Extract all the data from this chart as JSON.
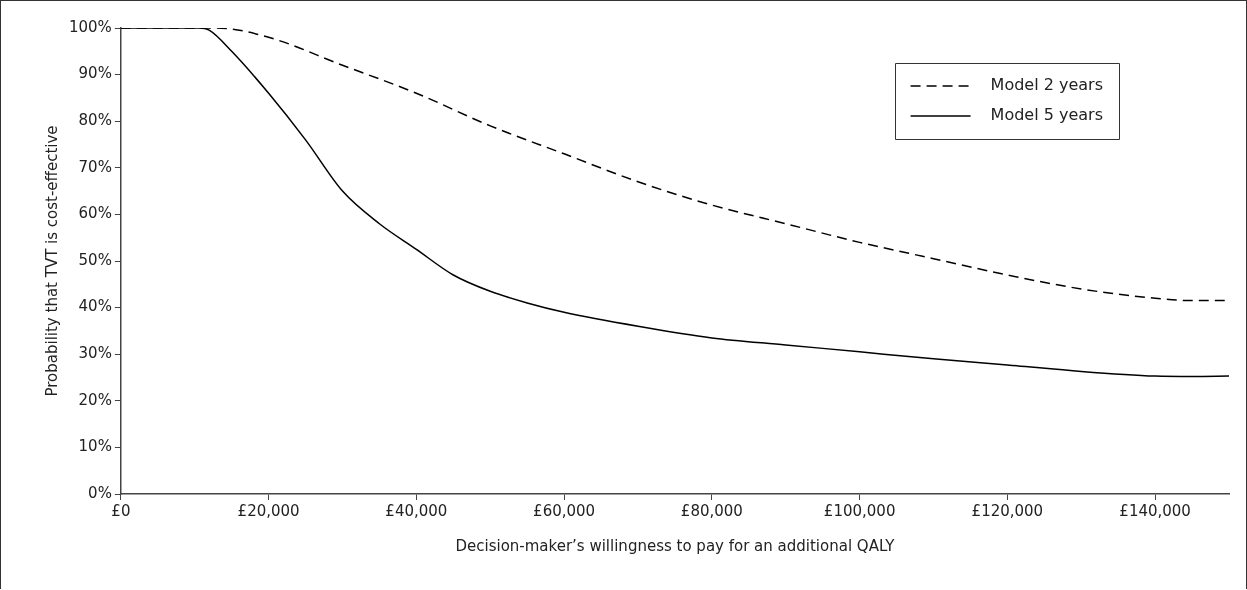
{
  "chart_data": {
    "type": "line",
    "xlabel": "Decision-maker’s willingness to pay for an additional QALY",
    "ylabel": "Probability that TVT is cost-effective",
    "xlim": [
      0,
      150000
    ],
    "ylim": [
      0,
      100
    ],
    "xticks": [
      {
        "value": 0,
        "label": "£0"
      },
      {
        "value": 20000,
        "label": "£20,000"
      },
      {
        "value": 40000,
        "label": "£40,000"
      },
      {
        "value": 60000,
        "label": "£60,000"
      },
      {
        "value": 80000,
        "label": "£80,000"
      },
      {
        "value": 100000,
        "label": "£100,000"
      },
      {
        "value": 120000,
        "label": "£120,000"
      },
      {
        "value": 140000,
        "label": "£140,000"
      }
    ],
    "yticks": [
      {
        "value": 0,
        "label": "0%"
      },
      {
        "value": 10,
        "label": "10%"
      },
      {
        "value": 20,
        "label": "20%"
      },
      {
        "value": 30,
        "label": "30%"
      },
      {
        "value": 40,
        "label": "40%"
      },
      {
        "value": 50,
        "label": "50%"
      },
      {
        "value": 60,
        "label": "60%"
      },
      {
        "value": 70,
        "label": "70%"
      },
      {
        "value": 80,
        "label": "80%"
      },
      {
        "value": 90,
        "label": "90%"
      },
      {
        "value": 100,
        "label": "100%"
      }
    ],
    "grid": false,
    "legend": "top right",
    "marker": "none",
    "series": [
      {
        "name": "Model 2 years",
        "color": "#000000",
        "line_style": "dashed",
        "x": [
          0,
          10000,
          13000,
          20000,
          30000,
          40000,
          50000,
          60000,
          70000,
          80000,
          90000,
          100000,
          110000,
          120000,
          130000,
          140000,
          145000,
          150000
        ],
        "values": [
          100,
          100,
          100,
          98,
          92,
          86,
          79,
          73,
          67,
          62,
          58,
          54,
          50.5,
          47,
          44,
          42,
          41.5,
          41.5
        ]
      },
      {
        "name": "Model 5 years",
        "color": "#000000",
        "line_style": "solid",
        "x": [
          0,
          5000,
          10500,
          12000,
          15000,
          20000,
          25000,
          30000,
          35000,
          40000,
          45000,
          50000,
          55000,
          60000,
          70000,
          80000,
          90000,
          100000,
          110000,
          120000,
          130000,
          140000,
          145000,
          150000
        ],
        "values": [
          100,
          100,
          100,
          99.5,
          95,
          86,
          76,
          65,
          58,
          52.5,
          47,
          43.5,
          41,
          39,
          36,
          33.5,
          32,
          30.5,
          29,
          27.7,
          26.3,
          25.3,
          25.2,
          25.3
        ]
      }
    ]
  }
}
